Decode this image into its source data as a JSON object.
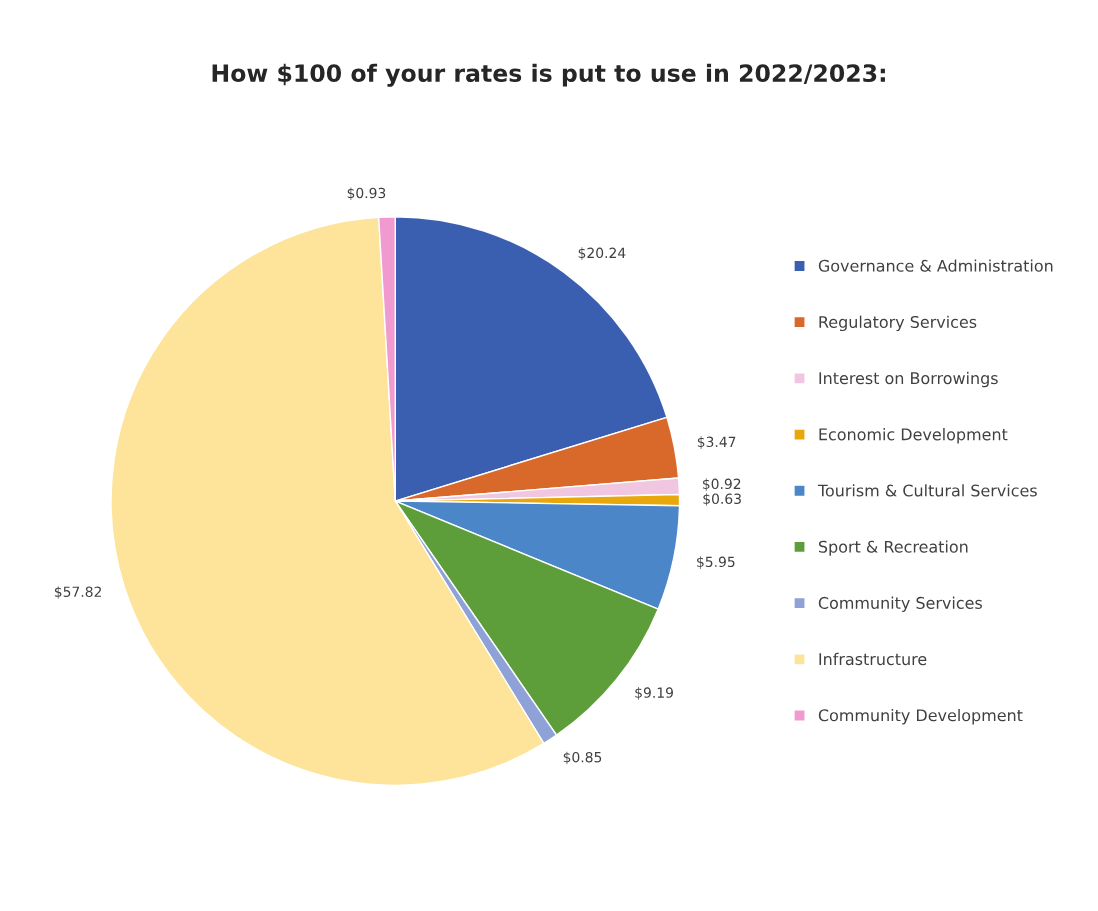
{
  "chart_data": {
    "type": "pie",
    "title": "How $100 of your rates is put to use in 2022/2023:",
    "categories": [
      "Governance & Administration",
      "Regulatory Services",
      "Interest on Borrowings",
      "Economic Development",
      "Tourism & Cultural Services",
      "Sport & Recreation",
      "Community Services",
      "Infrastructure",
      "Community Development"
    ],
    "values": [
      20.24,
      3.47,
      0.92,
      0.63,
      5.95,
      9.19,
      0.85,
      57.82,
      0.93
    ],
    "value_labels": [
      "$20.24",
      "$3.47",
      "$0.92",
      "$0.63",
      "$5.95",
      "$9.19",
      "$0.85",
      "$57.82",
      "$0.93"
    ],
    "colors": [
      "#3a5fb0",
      "#d9692a",
      "#f0c6e0",
      "#e8a80c",
      "#4a86c8",
      "#5e9e3a",
      "#8ea2d8",
      "#fde49a",
      "#f09ad0"
    ],
    "legend": "right"
  }
}
